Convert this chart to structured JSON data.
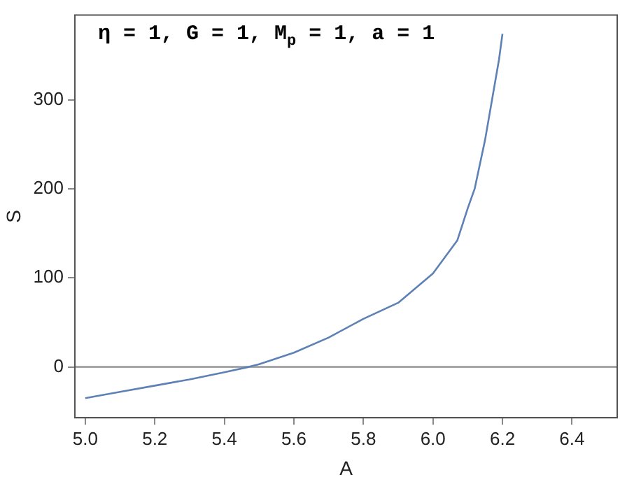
{
  "chart_data": {
    "type": "line",
    "xlabel": "A",
    "ylabel": "S",
    "annotations": [
      "η = 1, G = 1, M$_{p}$ = 1, a = 1"
    ],
    "series": [
      {
        "color": "#5e81b5",
        "x": [
          5.0,
          5.1,
          5.2,
          5.3,
          5.4,
          5.47,
          5.5,
          5.6,
          5.7,
          5.8,
          5.9,
          6.0,
          6.07,
          6.1,
          6.12,
          6.15,
          6.17,
          6.19,
          6.2
        ],
        "values": [
          -35,
          -28,
          -21,
          -14,
          -6,
          0,
          3,
          16,
          33,
          54,
          72,
          105,
          142,
          178,
          200,
          255,
          300,
          345,
          374
        ]
      }
    ],
    "xlim": [
      4.97,
      6.53
    ],
    "ylim": [
      -57,
      395
    ],
    "xticks": [
      {
        "value": 5.0,
        "label": "5.0"
      },
      {
        "value": 5.2,
        "label": "5.2"
      },
      {
        "value": 5.4,
        "label": "5.4"
      },
      {
        "value": 5.6,
        "label": "5.6"
      },
      {
        "value": 5.8,
        "label": "5.8"
      },
      {
        "value": 6.0,
        "label": "6.0"
      },
      {
        "value": 6.2,
        "label": "6.2"
      },
      {
        "value": 6.4,
        "label": "6.4"
      }
    ],
    "yticks": [
      0,
      100,
      200,
      300
    ],
    "ref_lines": [
      {
        "axis": "y",
        "value": 0,
        "color": "#a6a6a6"
      }
    ],
    "grid": false,
    "legend": false,
    "marker": "none",
    "line_style": "solid"
  }
}
